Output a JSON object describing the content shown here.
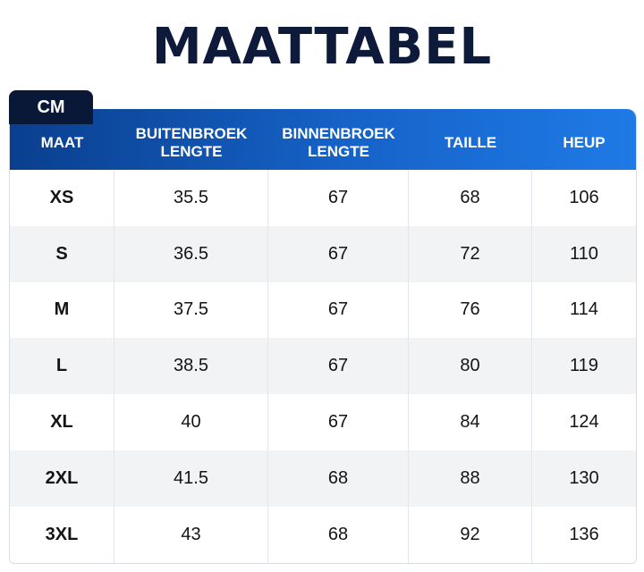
{
  "title": "MAATTABEL",
  "unit": "CM",
  "headers": [
    "MAAT",
    "BUITENBROEK\nLENGTE",
    "BINNENBROEK\nLENGTE",
    "TAILLE",
    "HEUP"
  ],
  "rows": [
    [
      "XS",
      "35.5",
      "67",
      "68",
      "106"
    ],
    [
      "S",
      "36.5",
      "67",
      "72",
      "110"
    ],
    [
      "M",
      "37.5",
      "67",
      "76",
      "114"
    ],
    [
      "L",
      "38.5",
      "67",
      "80",
      "119"
    ],
    [
      "XL",
      "40",
      "67",
      "84",
      "124"
    ],
    [
      "2XL",
      "41.5",
      "68",
      "88",
      "130"
    ],
    [
      "3XL",
      "43",
      "68",
      "92",
      "136"
    ]
  ],
  "colors": {
    "title": "#0d1a3a",
    "header_start": "#0a3f8e",
    "header_end": "#1f7ae6",
    "unit_tab": "#0a1838"
  }
}
